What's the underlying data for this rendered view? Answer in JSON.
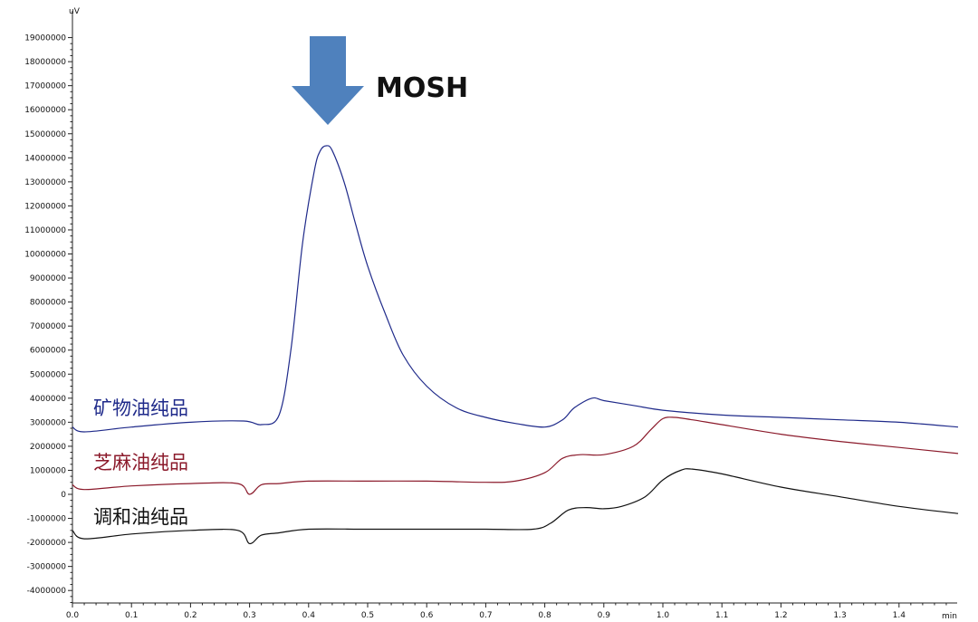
{
  "chart_data": {
    "type": "line",
    "xlabel": "min",
    "ylabel": "uV",
    "xlim": [
      0.0,
      1.5
    ],
    "ylim": [
      -4500000,
      19500000
    ],
    "xticks": [
      "0.0",
      "0.1",
      "0.2",
      "0.3",
      "0.4",
      "0.5",
      "0.6",
      "0.7",
      "0.8",
      "0.9",
      "1.0",
      "1.1",
      "1.2",
      "1.3",
      "1.4"
    ],
    "yticks": [
      "19000000",
      "18000000",
      "17000000",
      "16000000",
      "15000000",
      "14000000",
      "13000000",
      "12000000",
      "11000000",
      "10000000",
      "9000000",
      "8000000",
      "7000000",
      "6000000",
      "5000000",
      "4000000",
      "3000000",
      "2000000",
      "1000000",
      "0",
      "-1000000",
      "-2000000",
      "-3000000",
      "-4000000"
    ],
    "grid": false,
    "annotation": {
      "text": "MOSH",
      "arrow_color": "#4f81bd",
      "x": 0.43
    },
    "series": [
      {
        "name": "矿物油纯品",
        "color": "#1f2a8a",
        "x": [
          0.0,
          0.02,
          0.1,
          0.2,
          0.29,
          0.32,
          0.35,
          0.37,
          0.39,
          0.41,
          0.42,
          0.43,
          0.44,
          0.46,
          0.48,
          0.5,
          0.53,
          0.56,
          0.6,
          0.65,
          0.7,
          0.75,
          0.8,
          0.83,
          0.85,
          0.88,
          0.9,
          0.95,
          1.0,
          1.1,
          1.2,
          1.3,
          1.4,
          1.5
        ],
        "y": [
          2800000,
          2600000,
          2800000,
          3000000,
          3050000,
          2900000,
          3300000,
          6000000,
          10500000,
          13500000,
          14300000,
          14500000,
          14300000,
          13000000,
          11200000,
          9500000,
          7500000,
          5800000,
          4500000,
          3600000,
          3200000,
          2950000,
          2800000,
          3100000,
          3600000,
          4000000,
          3900000,
          3700000,
          3500000,
          3300000,
          3200000,
          3100000,
          3000000,
          2800000
        ]
      },
      {
        "name": "芝麻油纯品",
        "color": "#8b1a2b",
        "x": [
          0.0,
          0.02,
          0.1,
          0.2,
          0.28,
          0.3,
          0.32,
          0.35,
          0.4,
          0.5,
          0.6,
          0.7,
          0.75,
          0.8,
          0.83,
          0.86,
          0.9,
          0.95,
          0.98,
          1.0,
          1.02,
          1.05,
          1.1,
          1.2,
          1.3,
          1.4,
          1.5
        ],
        "y": [
          400000,
          200000,
          350000,
          450000,
          450000,
          0,
          400000,
          450000,
          550000,
          550000,
          550000,
          500000,
          550000,
          900000,
          1500000,
          1650000,
          1650000,
          2000000,
          2700000,
          3150000,
          3200000,
          3100000,
          2900000,
          2500000,
          2200000,
          1950000,
          1700000
        ]
      },
      {
        "name": "调和油纯品",
        "color": "#111111",
        "x": [
          0.0,
          0.02,
          0.1,
          0.2,
          0.28,
          0.3,
          0.32,
          0.35,
          0.4,
          0.5,
          0.6,
          0.7,
          0.78,
          0.81,
          0.84,
          0.87,
          0.9,
          0.93,
          0.97,
          1.0,
          1.03,
          1.05,
          1.1,
          1.2,
          1.3,
          1.4,
          1.5
        ],
        "y": [
          -1500000,
          -1850000,
          -1650000,
          -1500000,
          -1500000,
          -2050000,
          -1700000,
          -1600000,
          -1450000,
          -1450000,
          -1450000,
          -1450000,
          -1450000,
          -1200000,
          -650000,
          -550000,
          -600000,
          -500000,
          -100000,
          600000,
          1000000,
          1050000,
          850000,
          300000,
          -100000,
          -500000,
          -800000
        ]
      }
    ]
  }
}
